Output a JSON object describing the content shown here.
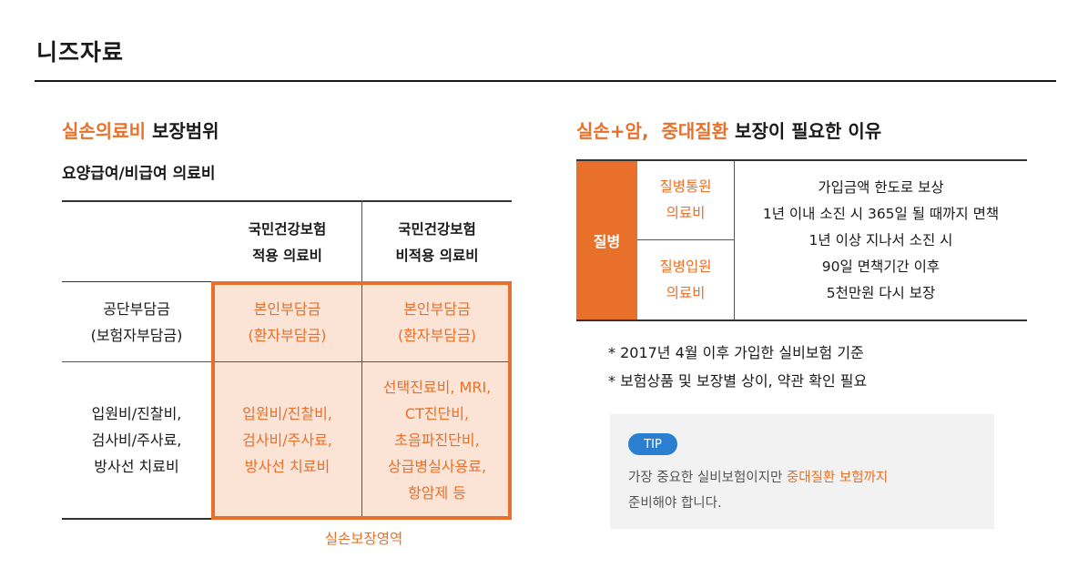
{
  "page": {
    "title": "니즈자료"
  },
  "left": {
    "title_highlight": "실손의료비",
    "title_rest": " 보장범위",
    "subtitle": "요양급여/비급여 의료비",
    "table": {
      "head_col1": [
        "국민건강보험",
        "적용 의료비"
      ],
      "head_col2": [
        "국민건강보험",
        "비적용 의료비"
      ],
      "row1_label": [
        "공단부담금",
        "(보험자부담금)"
      ],
      "row1_col1": [
        "본인부담금",
        "(환자부담금)"
      ],
      "row1_col2": [
        "본인부담금",
        "(환자부담금)"
      ],
      "row2_label": [
        "입원비/진찰비,",
        "검사비/주사료,",
        "방사선 치료비"
      ],
      "row2_col1": [
        "입원비/진찰비,",
        "검사비/주사료,",
        "방사선 치료비"
      ],
      "row2_col2": [
        "선택진료비, MRI,",
        "CT진단비,",
        "초음파진단비,",
        "상급병실사용료,",
        "항암제 등"
      ]
    },
    "caption": "실손보장영역"
  },
  "right": {
    "title_highlight": "실손+암,  중대질환",
    "title_rest": " 보장이 필요한 이유",
    "table": {
      "category": "질병",
      "item1": [
        "질병통원",
        "의료비"
      ],
      "item2": [
        "질병입원",
        "의료비"
      ],
      "desc": [
        "가입금액 한도로 보상",
        "1년 이내 소진 시 365일 될 때까지 면책",
        "1년 이상 지나서 소진 시",
        "90일 면책기간 이후",
        "5천만원 다시 보장"
      ]
    },
    "notes": [
      "* 2017년 4월 이후 가입한 실비보험 기준",
      "* 보험상품 및 보장별 상이, 약관 확인 필요"
    ],
    "tip": {
      "badge": "TIP",
      "line1_pre": "가장 중요한 실비보험이지만 ",
      "line1_highlight": "중대질환 보험까지",
      "line2": "준비해야 합니다."
    }
  }
}
